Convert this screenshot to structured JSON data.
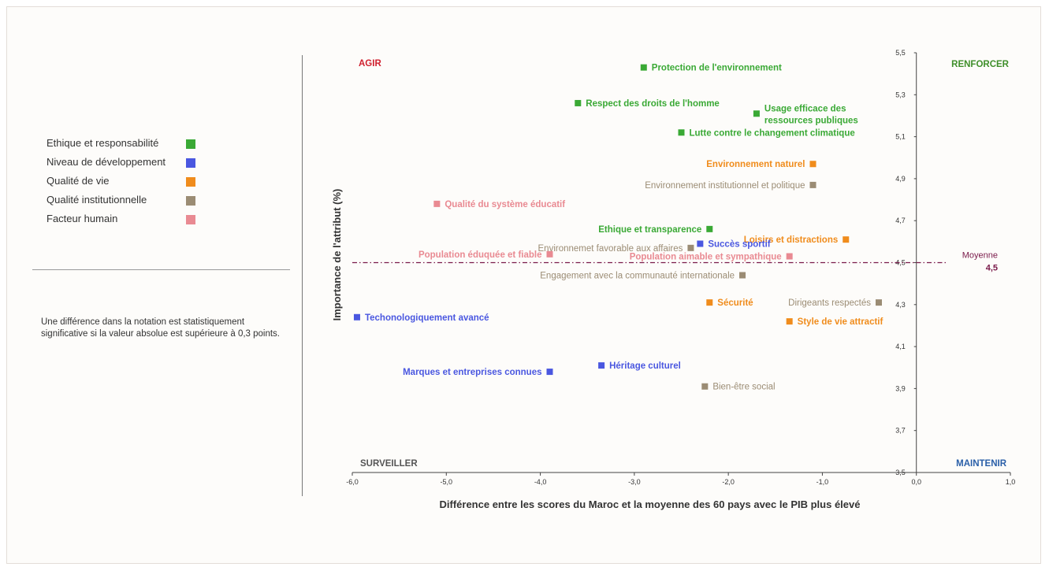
{
  "legend": [
    {
      "label": "Ethique et responsabilité",
      "color": "#3aa935"
    },
    {
      "label": "Niveau de développement",
      "color": "#4a57e0"
    },
    {
      "label": "Qualité de vie",
      "color": "#f08c1c"
    },
    {
      "label": "Qualité institutionnelle",
      "color": "#9b8c74"
    },
    {
      "label": "Facteur humain",
      "color": "#e98a92"
    }
  ],
  "note": "Une différence dans la notation est statistiquement significative si la valeur absolue est supérieure à 0,3 points.",
  "chart_data": {
    "type": "scatter",
    "xlabel": "Différence entre les scores du Maroc et la moyenne des 60 pays avec le PIB plus élevé",
    "ylabel": "Importance de l'attribut (%)",
    "xlim": [
      -6.0,
      1.0
    ],
    "ylim": [
      3.5,
      5.5
    ],
    "x_ticks": [
      -6.0,
      -5.0,
      -4.0,
      -3.0,
      -2.0,
      -1.0,
      0.0,
      1.0
    ],
    "x_tick_labels": [
      "-6,0",
      "-5,0",
      "-4,0",
      "-3,0",
      "-2,0",
      "-1,0",
      "0,0",
      "1,0"
    ],
    "y_ticks": [
      3.5,
      3.7,
      3.9,
      4.1,
      4.3,
      4.5,
      4.7,
      4.9,
      5.1,
      5.3,
      5.5
    ],
    "y_tick_labels": [
      "3,5",
      "3,7",
      "3,9",
      "4,1",
      "4,3",
      "4,5",
      "4,7",
      "4,9",
      "5,1",
      "5,3",
      "5,5"
    ],
    "quadrants": {
      "top_left": {
        "label": "AGIR",
        "color": "#d0202e"
      },
      "top_right": {
        "label": "RENFORCER",
        "color": "#3f8f2a"
      },
      "bottom_left": {
        "label": "SURVEILLER",
        "color": "#555555"
      },
      "bottom_right": {
        "label": "MAINTENIR",
        "color": "#2a5fa8"
      }
    },
    "mean_line": {
      "y": 4.5,
      "label": "Moyenne",
      "value_label": "4,5",
      "color": "#7a1a4a"
    },
    "points": [
      {
        "label": "Protection de l'environnement",
        "x": -2.9,
        "y": 5.43,
        "category": 0,
        "side": "right"
      },
      {
        "label": "Respect des droits de l'homme",
        "x": -3.6,
        "y": 5.26,
        "category": 0,
        "side": "right"
      },
      {
        "label": "Usage efficace des",
        "label2": "ressources publiques",
        "x": -1.7,
        "y": 5.21,
        "category": 0,
        "side": "right"
      },
      {
        "label": "Lutte contre le changement climatique",
        "x": -2.5,
        "y": 5.12,
        "category": 0,
        "side": "right"
      },
      {
        "label": "Environnement naturel",
        "x": -1.1,
        "y": 4.97,
        "category": 2,
        "side": "left"
      },
      {
        "label": "Environnement institutionnel et politique",
        "x": -1.1,
        "y": 4.87,
        "category": 3,
        "side": "left"
      },
      {
        "label": "Qualité du système éducatif",
        "x": -5.1,
        "y": 4.78,
        "category": 4,
        "side": "right"
      },
      {
        "label": "Ethique et transparence",
        "x": -2.2,
        "y": 4.66,
        "category": 0,
        "side": "left"
      },
      {
        "label": "Loisirs et distractions",
        "x": -0.75,
        "y": 4.61,
        "category": 2,
        "side": "left"
      },
      {
        "label": "Environnemet favorable aux affaires",
        "x": -2.4,
        "y": 4.57,
        "category": 3,
        "side": "left"
      },
      {
        "label": "Succès sportif",
        "x": -2.3,
        "y": 4.59,
        "category": 1,
        "side": "right"
      },
      {
        "label": "Population éduquée et fiable",
        "x": -3.9,
        "y": 4.54,
        "category": 4,
        "side": "left"
      },
      {
        "label": "Population aimable et sympathique",
        "x": -1.35,
        "y": 4.53,
        "category": 4,
        "side": "left"
      },
      {
        "label": "Engagement avec la communauté internationale",
        "x": -1.85,
        "y": 4.44,
        "category": 3,
        "side": "left"
      },
      {
        "label": "Sécurité",
        "x": -2.2,
        "y": 4.31,
        "category": 2,
        "side": "right"
      },
      {
        "label": "Dirigeants respectés",
        "x": -0.4,
        "y": 4.31,
        "category": 3,
        "side": "left"
      },
      {
        "label": "Techonologiquement avancé",
        "x": -5.95,
        "y": 4.24,
        "category": 1,
        "side": "right"
      },
      {
        "label": "Style de vie attractif",
        "x": -1.35,
        "y": 4.22,
        "category": 2,
        "side": "right"
      },
      {
        "label": "Héritage culturel",
        "x": -3.35,
        "y": 4.01,
        "category": 1,
        "side": "right"
      },
      {
        "label": "Marques et entreprises connues",
        "x": -3.9,
        "y": 3.98,
        "category": 1,
        "side": "left"
      },
      {
        "label": "Bien-être social",
        "x": -2.25,
        "y": 3.91,
        "category": 3,
        "side": "right"
      }
    ]
  }
}
